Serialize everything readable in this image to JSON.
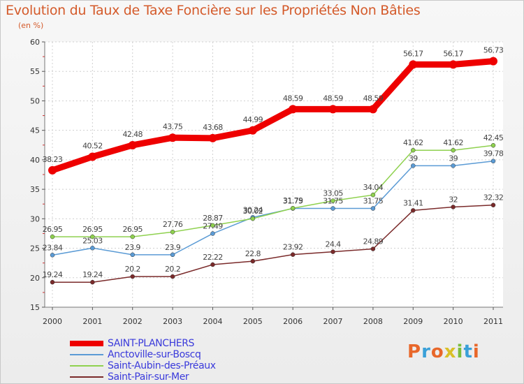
{
  "title": "Evolution du Taux de Taxe Foncière sur les Propriétés Non Bâties",
  "subtitle": "(en %)",
  "logo": {
    "text": "Proxiti",
    "colors": [
      "#e8672a",
      "#3aa0d8",
      "#e8672a",
      "#d9c028",
      "#7bbd3c",
      "#3aa0d8",
      "#e8672a"
    ]
  },
  "chart_data": {
    "type": "line",
    "x": [
      "2000",
      "2001",
      "2002",
      "2003",
      "2004",
      "2005",
      "2006",
      "2007",
      "2008",
      "2009",
      "2010",
      "2011"
    ],
    "ylim": [
      15,
      60
    ],
    "yticks": [
      "15",
      "20",
      "25",
      "30",
      "35",
      "40",
      "45",
      "50",
      "55",
      "60"
    ],
    "grid": true,
    "legend": "bottom-left",
    "series": [
      {
        "name": "SAINT-PLANCHERS",
        "color": "#ee0000",
        "values": [
          38.23,
          40.52,
          42.48,
          43.75,
          43.68,
          44.99,
          48.59,
          48.59,
          48.59,
          56.17,
          56.17,
          56.73
        ],
        "labels": [
          "38.23",
          "40.52",
          "42.48",
          "43.75",
          "43.68",
          "44.99",
          "48.59",
          "48.59",
          "48.59",
          "56.17",
          "56.17",
          "56.73"
        ]
      },
      {
        "name": "Anctoville-sur-Boscq",
        "color": "#5b9bd5",
        "values": [
          23.84,
          25.03,
          23.9,
          23.9,
          27.49,
          30.24,
          31.75,
          31.75,
          31.75,
          39,
          39,
          39.78
        ],
        "labels": [
          "23.84",
          "25.03",
          "23.9",
          "23.9",
          "27.49",
          "30.24",
          "31.75",
          "31.75",
          "31.75",
          "39",
          "39",
          "39.78"
        ]
      },
      {
        "name": "Saint-Aubin-des-Préaux",
        "color": "#8fd14f",
        "values": [
          26.95,
          26.95,
          26.95,
          27.76,
          28.87,
          30.02,
          31.79,
          33.05,
          34.04,
          41.62,
          41.62,
          42.45
        ],
        "labels": [
          "26.95",
          "26.95",
          "26.95",
          "27.76",
          "28.87",
          "30.02",
          "31.79",
          "33.05",
          "34.04",
          "41.62",
          "41.62",
          "42.45"
        ]
      },
      {
        "name": "Saint-Pair-sur-Mer",
        "color": "#7a2a2a",
        "values": [
          19.24,
          19.24,
          20.2,
          20.2,
          22.22,
          22.8,
          23.92,
          24.4,
          24.89,
          31.41,
          32,
          32.32
        ],
        "labels": [
          "19.24",
          "19.24",
          "20.2",
          "20.2",
          "22.22",
          "22.8",
          "23.92",
          "24.4",
          "24.89",
          "31.41",
          "32",
          "32.32"
        ]
      }
    ]
  }
}
